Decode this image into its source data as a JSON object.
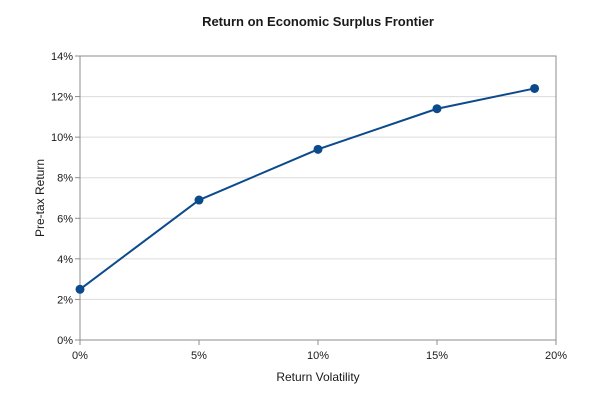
{
  "chart_data": {
    "type": "line",
    "title": "Return on Economic Surplus Frontier",
    "xlabel": "Return Volatility",
    "ylabel": "Pre-tax Return",
    "xlim": [
      0,
      20
    ],
    "ylim": [
      0,
      14
    ],
    "x_ticks": [
      0,
      5,
      10,
      15,
      20
    ],
    "x_tick_labels": [
      "0%",
      "5%",
      "10%",
      "15%",
      "20%"
    ],
    "y_ticks": [
      0,
      2,
      4,
      6,
      8,
      10,
      12,
      14
    ],
    "y_tick_labels": [
      "0%",
      "2%",
      "4%",
      "6%",
      "8%",
      "10%",
      "12%",
      "14%"
    ],
    "grid": {
      "x": false,
      "y": true
    },
    "legend": "none",
    "series": [
      {
        "x": [
          0,
          5,
          10,
          15,
          19.1
        ],
        "y": [
          2.5,
          6.9,
          9.4,
          11.4,
          12.4
        ]
      }
    ],
    "colors": {
      "series": "#0b4a8b",
      "grid": "#dcdcdc",
      "axis": "#8c8c8c"
    }
  }
}
